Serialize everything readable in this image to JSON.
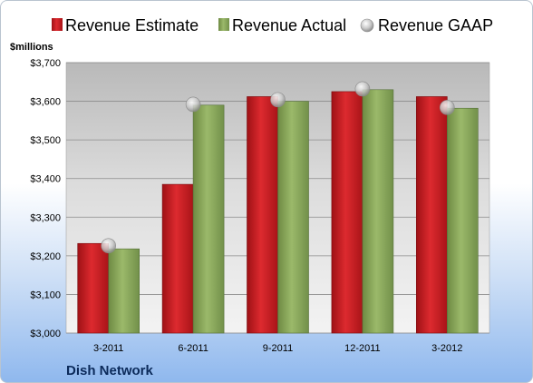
{
  "chart_data": {
    "type": "bar",
    "unit_label": "$millions",
    "categories": [
      "3-2011",
      "6-2011",
      "9-2011",
      "12-2011",
      "3-2012"
    ],
    "series": [
      {
        "name": "Revenue Estimate",
        "kind": "bar",
        "color": "#cc1f24",
        "values": [
          3232,
          3385,
          3612,
          3625,
          3612
        ]
      },
      {
        "name": "Revenue Actual",
        "kind": "bar",
        "color": "#8aa95a",
        "values": [
          3218,
          3590,
          3600,
          3630,
          3582
        ]
      },
      {
        "name": "Revenue GAAP",
        "kind": "marker",
        "color": "#c8c8c8",
        "values": [
          3226,
          3592,
          3604,
          3632,
          3584
        ]
      }
    ],
    "ylim": [
      3000,
      3700
    ],
    "yticks": [
      3000,
      3100,
      3200,
      3300,
      3400,
      3500,
      3600,
      3700
    ],
    "ytick_labels": [
      "$3,000",
      "$3,100",
      "$3,200",
      "$3,300",
      "$3,400",
      "$3,500",
      "$3,600",
      "$3,700"
    ],
    "grid": true,
    "legend_position": "top"
  },
  "company": "Dish Network"
}
